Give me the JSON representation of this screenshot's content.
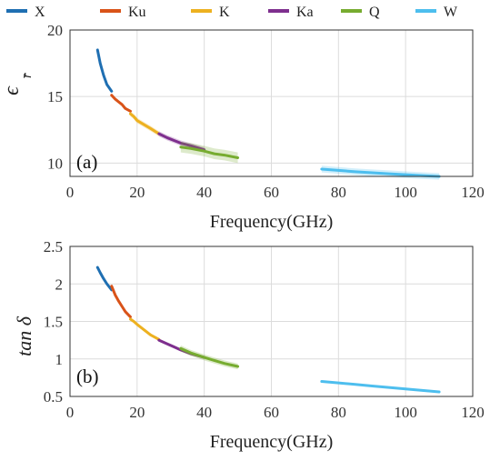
{
  "legend": {
    "items": [
      {
        "label": "X",
        "color": "#1f6fb2"
      },
      {
        "label": "Ku",
        "color": "#d95319"
      },
      {
        "label": "K",
        "color": "#edb120"
      },
      {
        "label": "Ka",
        "color": "#7e2f8e"
      },
      {
        "label": "Q",
        "color": "#77ac30"
      },
      {
        "label": "W",
        "color": "#4dbeee"
      }
    ]
  },
  "chart_data": [
    {
      "type": "line",
      "panel_label": "(a)",
      "xlabel": "Frequency(GHz)",
      "ylabel": "ε′r",
      "xlim": [
        0,
        120
      ],
      "ylim": [
        9,
        20
      ],
      "xticks": [
        0,
        20,
        40,
        60,
        80,
        100,
        120
      ],
      "yticks": [
        10,
        15,
        20
      ],
      "grid": true,
      "legend_position": "top",
      "series": [
        {
          "name": "X",
          "color": "#1f6fb2",
          "band": 0,
          "x": [
            8.2,
            9,
            10,
            11,
            12.4
          ],
          "y": [
            18.5,
            17.5,
            16.6,
            15.9,
            15.4
          ]
        },
        {
          "name": "Ku",
          "color": "#d95319",
          "band": 0,
          "x": [
            12.4,
            13.5,
            14.5,
            15.5,
            16.5,
            18
          ],
          "y": [
            15.1,
            14.8,
            14.6,
            14.4,
            14.1,
            13.9
          ]
        },
        {
          "name": "K",
          "color": "#edb120",
          "band": 0.2,
          "x": [
            18,
            19,
            20,
            22,
            24,
            26.5
          ],
          "y": [
            13.7,
            13.5,
            13.2,
            12.9,
            12.6,
            12.2
          ]
        },
        {
          "name": "Ka",
          "color": "#7e2f8e",
          "band": 0.2,
          "x": [
            26.5,
            29,
            31,
            33,
            36,
            40
          ],
          "y": [
            12.2,
            11.9,
            11.7,
            11.5,
            11.3,
            11.0
          ]
        },
        {
          "name": "Q",
          "color": "#77ac30",
          "band": 0.4,
          "x": [
            33,
            36,
            40,
            43,
            46,
            50
          ],
          "y": [
            11.2,
            11.1,
            10.9,
            10.7,
            10.6,
            10.4
          ]
        },
        {
          "name": "W",
          "color": "#4dbeee",
          "band": 0.25,
          "x": [
            75,
            80,
            85,
            90,
            95,
            100,
            105,
            110
          ],
          "y": [
            9.55,
            9.45,
            9.35,
            9.27,
            9.2,
            9.13,
            9.06,
            9.0
          ]
        }
      ]
    },
    {
      "type": "line",
      "panel_label": "(b)",
      "xlabel": "Frequency(GHz)",
      "ylabel": "tanδ",
      "xlim": [
        0,
        120
      ],
      "ylim": [
        0.5,
        2.5
      ],
      "xticks": [
        0,
        20,
        40,
        60,
        80,
        100,
        120
      ],
      "yticks": [
        0.5,
        1,
        1.5,
        2,
        2.5
      ],
      "grid": true,
      "series": [
        {
          "name": "X",
          "color": "#1f6fb2",
          "band": 0,
          "x": [
            8.2,
            9,
            10,
            11,
            12.4
          ],
          "y": [
            2.22,
            2.15,
            2.07,
            2.0,
            1.92
          ]
        },
        {
          "name": "Ku",
          "color": "#d95319",
          "band": 0,
          "x": [
            12.4,
            13.5,
            14.5,
            15.5,
            16.5,
            18
          ],
          "y": [
            1.97,
            1.85,
            1.77,
            1.7,
            1.63,
            1.56
          ]
        },
        {
          "name": "K",
          "color": "#edb120",
          "band": 0.02,
          "x": [
            18,
            19,
            20,
            22,
            24,
            26.5
          ],
          "y": [
            1.53,
            1.5,
            1.46,
            1.39,
            1.32,
            1.26
          ]
        },
        {
          "name": "Ka",
          "color": "#7e2f8e",
          "band": 0.02,
          "x": [
            26.5,
            29,
            31,
            33,
            36,
            40
          ],
          "y": [
            1.25,
            1.2,
            1.16,
            1.12,
            1.07,
            1.02
          ]
        },
        {
          "name": "Q",
          "color": "#77ac30",
          "band": 0.04,
          "x": [
            33,
            36,
            40,
            43,
            46,
            50
          ],
          "y": [
            1.14,
            1.08,
            1.02,
            0.98,
            0.94,
            0.9
          ]
        },
        {
          "name": "W",
          "color": "#4dbeee",
          "band": 0.01,
          "x": [
            75,
            80,
            85,
            90,
            95,
            100,
            105,
            110
          ],
          "y": [
            0.7,
            0.68,
            0.66,
            0.64,
            0.62,
            0.6,
            0.58,
            0.56
          ]
        }
      ]
    }
  ]
}
